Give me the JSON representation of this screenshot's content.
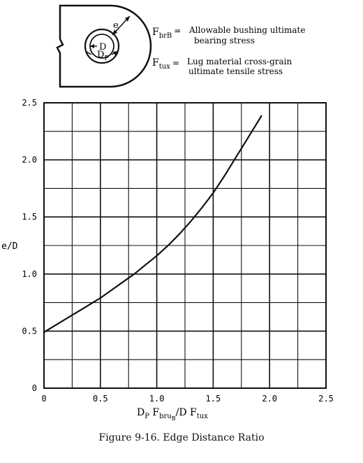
{
  "figure": {
    "caption": "Figure 9-16.  Edge Distance Ratio"
  },
  "diagram": {
    "labels": {
      "e": "e",
      "d": "D",
      "dp": "D",
      "dp_sub": "P"
    },
    "legend": [
      {
        "sym": "F",
        "sub": "brB",
        "eq": "=",
        "line1": "Allowable bushing ultimate",
        "line2": "bearing stress"
      },
      {
        "sym": "F",
        "sub": "tux",
        "eq": "=",
        "line1": "Lug material cross-grain",
        "line2": "ultimate tensile stress"
      }
    ]
  },
  "chart_data": {
    "type": "line",
    "ylabel": "e/D",
    "xlabel": {
      "parts": [
        "D",
        "P",
        " F",
        "bru",
        "B",
        "/D F",
        "tux"
      ]
    },
    "xlim": [
      0,
      2.5
    ],
    "ylim": [
      0,
      2.5
    ],
    "grid": true,
    "x_ticks": [
      "0",
      "0.5",
      "1.0",
      "1.5",
      "2.0",
      "2.5"
    ],
    "y_ticks": [
      "0",
      "0.5",
      "1.0",
      "1.5",
      "2.0",
      "2.5"
    ],
    "series": [
      {
        "x": [
          0,
          0.1,
          0.2,
          0.3,
          0.4,
          0.5,
          0.6,
          0.7,
          0.8,
          0.9,
          1.0,
          1.1,
          1.2,
          1.3,
          1.4,
          1.5,
          1.6,
          1.7,
          1.8,
          1.9,
          1.93
        ],
        "y": [
          0.49,
          0.55,
          0.61,
          0.67,
          0.73,
          0.79,
          0.86,
          0.93,
          1.0,
          1.08,
          1.16,
          1.25,
          1.35,
          1.46,
          1.58,
          1.71,
          1.86,
          2.02,
          2.18,
          2.34,
          2.39
        ]
      }
    ]
  }
}
